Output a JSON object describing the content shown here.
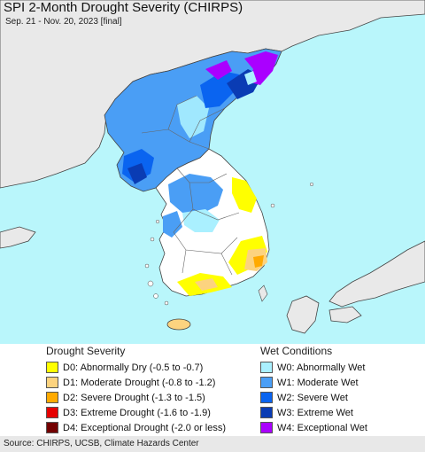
{
  "title": "SPI 2-Month Drought Severity (CHIRPS)",
  "subtitle": "Sep. 21 - Nov. 20, 2023 [final]",
  "colors": {
    "sea": "#b9f6fb",
    "land_foreign": "#e9e9e9",
    "land_base": "#ffffff",
    "border": "#444444"
  },
  "legend_drought": {
    "heading": "Drought Severity",
    "items": [
      {
        "label": "D0: Abnormally Dry (-0.5 to -0.7)",
        "color": "#ffff00"
      },
      {
        "label": "D1: Moderate Drought (-0.8 to -1.2)",
        "color": "#fcd37f"
      },
      {
        "label": "D2: Severe Drought (-1.3 to -1.5)",
        "color": "#ffaa00"
      },
      {
        "label": "D3: Extreme Drought (-1.6 to -1.9)",
        "color": "#e60000"
      },
      {
        "label": "D4: Exceptional Drought (-2.0 or less)",
        "color": "#730000"
      }
    ]
  },
  "legend_wet": {
    "heading": "Wet Conditions",
    "items": [
      {
        "label": "W0: Abnormally Wet",
        "color": "#aaf0ff"
      },
      {
        "label": "W1: Moderate Wet",
        "color": "#4a9ef5"
      },
      {
        "label": "W2: Severe Wet",
        "color": "#0a64f0"
      },
      {
        "label": "W3: Extreme Wet",
        "color": "#0a3cb4"
      },
      {
        "label": "W4: Exceptional Wet",
        "color": "#aa00ff"
      }
    ]
  },
  "source": "Source: CHIRPS, UCSB, Climate Hazards Center"
}
